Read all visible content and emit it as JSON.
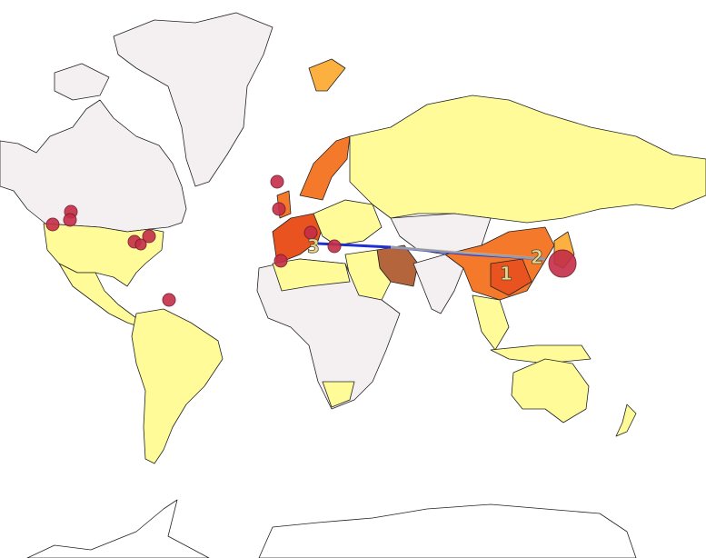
{
  "route_labels": [
    "1",
    "2",
    "3"
  ]
}
